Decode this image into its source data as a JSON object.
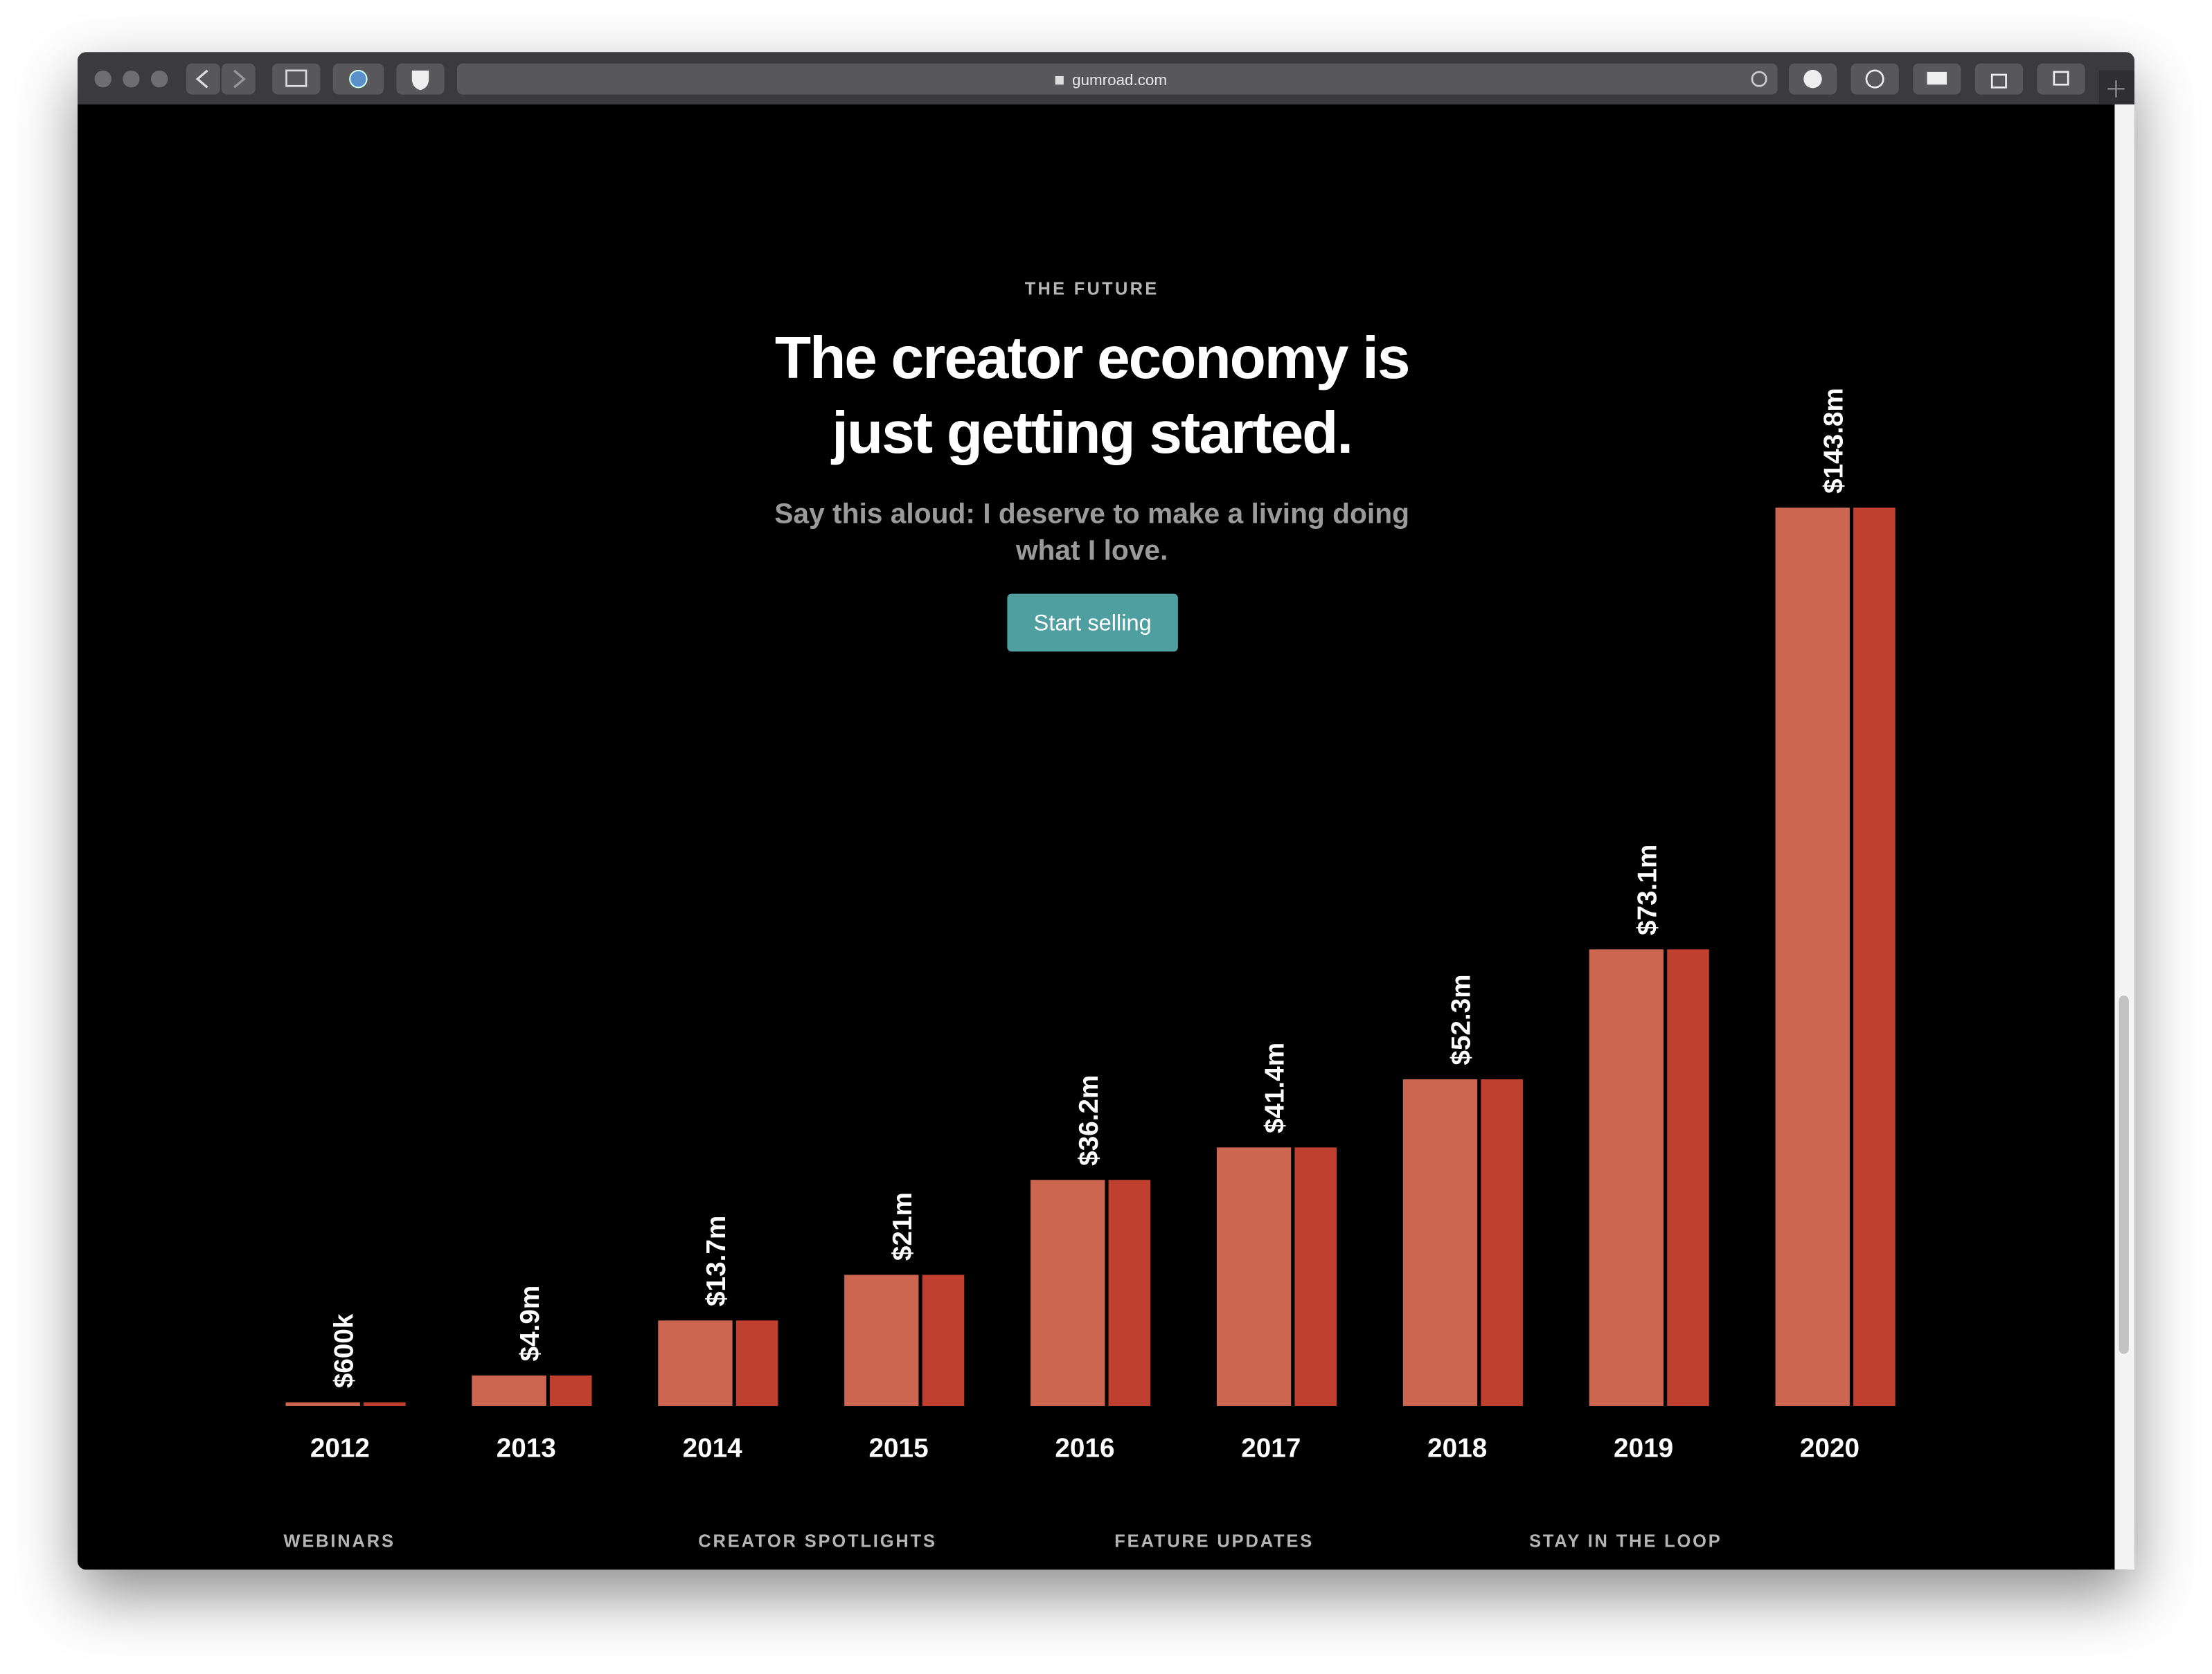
{
  "browser": {
    "url": "gumroad.com"
  },
  "hero": {
    "eyebrow": "THE FUTURE",
    "headline": [
      "The creator economy is",
      "just getting started."
    ],
    "subtitle": [
      "Say this aloud: I deserve to make a living doing",
      "what I love."
    ],
    "button": "Start selling"
  },
  "chart_data": {
    "type": "bar",
    "categories": [
      "2012",
      "2013",
      "2014",
      "2015",
      "2016",
      "2017",
      "2018",
      "2019",
      "2020"
    ],
    "values": [
      600000,
      4900000,
      13700000,
      21000000,
      36200000,
      41400000,
      52300000,
      73100000,
      143800000
    ],
    "value_labels": [
      "$600k",
      "$4.9m",
      "$13.7m",
      "$21m",
      "$36.2m",
      "$41.4m",
      "$52.3m",
      "$73.1m",
      "$143.8m"
    ],
    "color": "#cc6650",
    "shade_color": "#c0402f"
  },
  "footer": {
    "links": [
      "WEBINARS",
      "CREATOR SPOTLIGHTS",
      "FEATURE UPDATES",
      "STAY IN THE LOOP"
    ]
  }
}
